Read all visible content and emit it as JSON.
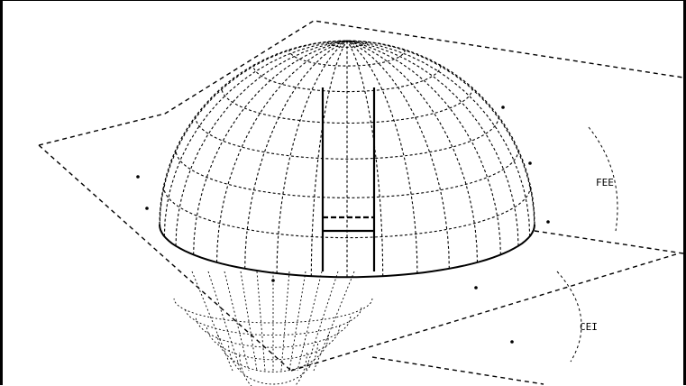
{
  "figure": {
    "description_free": true,
    "line_color": "#000000",
    "background": "#ffffff",
    "labels": {
      "upper_right": "FEE",
      "lower_right": "CEI"
    }
  }
}
